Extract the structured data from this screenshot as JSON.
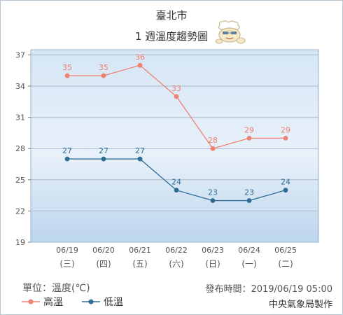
{
  "header": {
    "title": "臺北市",
    "subtitle": "1 週溫度趨勢圖"
  },
  "footer": {
    "unit": "單位：溫度(℃)",
    "published": "發布時間：2019/06/19 05:00",
    "agency": "中央氣象局製作"
  },
  "legend": {
    "high_label": "高溫",
    "low_label": "低溫"
  },
  "chart_data": {
    "type": "line",
    "x_dates": [
      "06/19",
      "06/20",
      "06/21",
      "06/22",
      "06/23",
      "06/24",
      "06/25"
    ],
    "x_weekdays": [
      "(三)",
      "(四)",
      "(五)",
      "(六)",
      "(日)",
      "(一)",
      "(二)"
    ],
    "series": [
      {
        "name": "高溫",
        "values": [
          35,
          35,
          36,
          33,
          28,
          29,
          29
        ],
        "color": "#f0806f"
      },
      {
        "name": "低溫",
        "values": [
          27,
          27,
          27,
          24,
          23,
          23,
          24
        ],
        "color": "#2e6e96"
      }
    ],
    "yticks": [
      19,
      22,
      25,
      28,
      31,
      34,
      37
    ],
    "ylim": [
      19,
      37.5
    ],
    "grid": true,
    "legend_position": "bottom-left"
  }
}
